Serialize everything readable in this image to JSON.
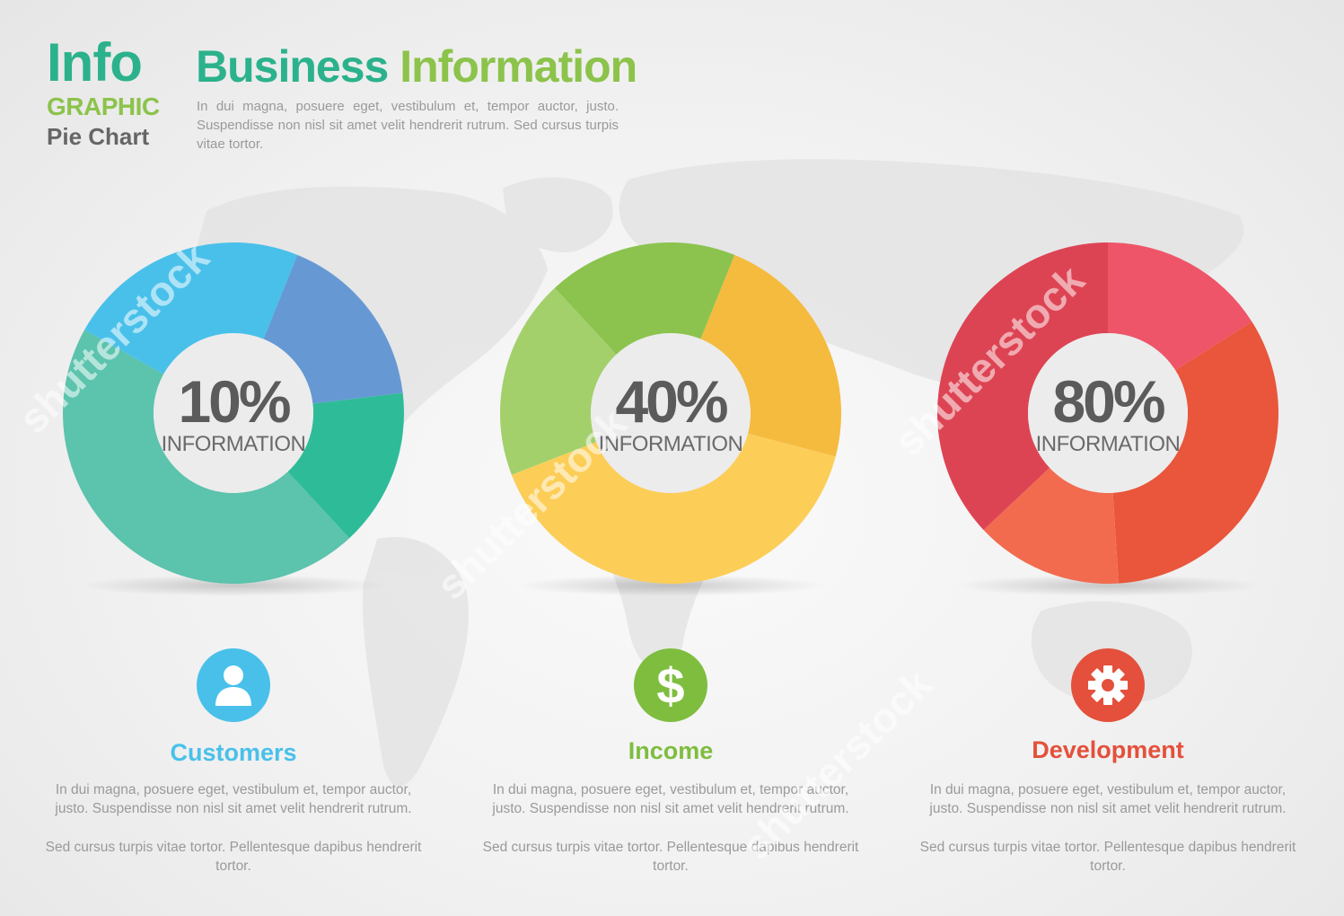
{
  "header": {
    "logo_line1": "Info",
    "logo_line2": "GRAPHIC",
    "logo_line3": "Pie Chart",
    "title_part1": "Business",
    "title_part2": "Information",
    "body": "In dui magna, posuere eget, vestibulum et, tempor auctor, justo. Suspendisse non nisl sit amet velit hendrerit rutrum. Sed cursus turpis vitae tortor."
  },
  "watermark": "shutterstock",
  "chart_data": [
    {
      "type": "pie",
      "center_value": "10%",
      "center_label": "INFORMATION",
      "slices": [
        {
          "value": 17,
          "color": "#6699d4"
        },
        {
          "value": 15,
          "color": "#2ebc98"
        },
        {
          "value": 45,
          "color": "#5cc3ad"
        },
        {
          "value": 23,
          "color": "#49c0ea"
        }
      ]
    },
    {
      "type": "pie",
      "center_value": "40%",
      "center_label": "INFORMATION",
      "slices": [
        {
          "value": 23,
          "color": "#f5bb3f"
        },
        {
          "value": 40,
          "color": "#fcce58"
        },
        {
          "value": 19,
          "color": "#a3d06b"
        },
        {
          "value": 18,
          "color": "#8bc34e"
        }
      ]
    },
    {
      "type": "pie",
      "center_value": "80%",
      "center_label": "INFORMATION",
      "slices": [
        {
          "value": 16,
          "color": "#ee5568"
        },
        {
          "value": 33,
          "color": "#e9563b"
        },
        {
          "value": 14,
          "color": "#f26b4f"
        },
        {
          "value": 37,
          "color": "#dd4453"
        }
      ]
    }
  ],
  "sections": [
    {
      "title": "Customers",
      "icon": "user-icon",
      "color": "#49c0ea",
      "body1": "In dui magna, posuere eget, vestibulum et, tempor auctor, justo. Suspendisse non nisl sit amet velit hendrerit rutrum.",
      "body2": "Sed cursus turpis vitae tortor. Pellentesque dapibus hendrerit tortor."
    },
    {
      "title": "Income",
      "icon": "dollar-icon",
      "color": "#7fbd3f",
      "body1": "In dui magna, posuere eget, vestibulum et, tempor auctor, justo. Suspendisse non nisl sit amet velit hendrerit rutrum.",
      "body2": "Sed cursus turpis vitae tortor. Pellentesque dapibus hendrerit tortor."
    },
    {
      "title": "Development",
      "icon": "gear-icon",
      "color": "#e4503b",
      "body1": "In dui magna, posuere eget, vestibulum et, tempor auctor, justo. Suspendisse non nisl sit amet velit hendrerit rutrum.",
      "body2": "Sed cursus turpis vitae tortor. Pellentesque dapibus hendrerit tortor."
    }
  ]
}
